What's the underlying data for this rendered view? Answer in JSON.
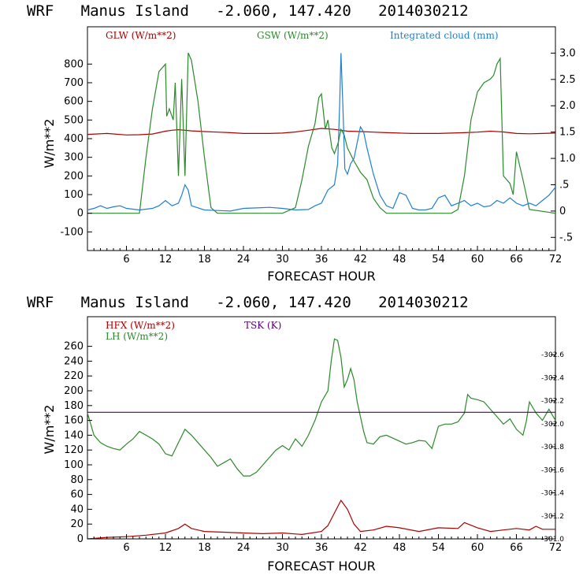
{
  "top_title": "WRF   Manus Island   -2.060, 147.420   2014030212",
  "bottom_title": "WRF   Manus Island   -2.060, 147.420   2014030212",
  "chart_data": [
    {
      "type": "line",
      "xlabel": "FORECAST HOUR",
      "ylabel": "W/m**2",
      "xlim": [
        0,
        72
      ],
      "xticks": [
        6,
        12,
        18,
        24,
        30,
        36,
        42,
        48,
        54,
        60,
        66,
        72
      ],
      "ylim": [
        -200,
        1000
      ],
      "yticks": [
        -100,
        0,
        100,
        200,
        300,
        400,
        500,
        600,
        700,
        800
      ],
      "y2lim": [
        -0.75,
        3.5
      ],
      "y2ticks": [
        -0.5,
        0,
        0.5,
        1.0,
        1.5,
        2.0,
        2.5,
        3.0
      ],
      "y2ticklabels": [
        "-.5",
        "0",
        ".5",
        "1.0",
        "1.5",
        "2.0",
        "2.5",
        "3.0"
      ],
      "series": [
        {
          "name": "GLW (W/m**2)",
          "color": "#aa0000",
          "axis": "left",
          "x": [
            0,
            3,
            6,
            8,
            10,
            12,
            13,
            14,
            15,
            16,
            18,
            20,
            22,
            24,
            26,
            28,
            30,
            32,
            34,
            36,
            38,
            40,
            42,
            44,
            46,
            48,
            50,
            52,
            54,
            56,
            58,
            60,
            62,
            64,
            66,
            68,
            70,
            72
          ],
          "y": [
            423,
            428,
            420,
            421,
            425,
            440,
            445,
            448,
            445,
            442,
            438,
            435,
            432,
            428,
            428,
            428,
            430,
            436,
            445,
            455,
            450,
            440,
            438,
            435,
            432,
            430,
            428,
            428,
            428,
            430,
            432,
            435,
            440,
            436,
            428,
            426,
            428,
            430
          ]
        },
        {
          "name": "GSW (W/m**2)",
          "color": "#2a8a2a",
          "axis": "left",
          "x": [
            0,
            8,
            9,
            10,
            11,
            12,
            12.2,
            12.6,
            13.2,
            13.5,
            14,
            14.5,
            15,
            15.5,
            16,
            17,
            18,
            19,
            20,
            24,
            30,
            32,
            33,
            34,
            35,
            35.6,
            36,
            36.6,
            37,
            37.6,
            38,
            38.6,
            39,
            39.5,
            40,
            41,
            42,
            43,
            44,
            45,
            46,
            50,
            56,
            57,
            58,
            59,
            60,
            61,
            62,
            62.5,
            63,
            63.5,
            64,
            65,
            65.5,
            66,
            67,
            68,
            72
          ],
          "y": [
            0,
            0,
            300,
            560,
            760,
            800,
            520,
            560,
            500,
            700,
            200,
            720,
            200,
            860,
            820,
            600,
            300,
            30,
            0,
            0,
            0,
            30,
            180,
            360,
            480,
            620,
            640,
            450,
            500,
            350,
            320,
            380,
            450,
            420,
            350,
            280,
            220,
            180,
            80,
            30,
            0,
            0,
            0,
            20,
            200,
            500,
            650,
            700,
            720,
            740,
            800,
            830,
            200,
            160,
            100,
            330,
            180,
            20,
            0
          ]
        },
        {
          "name": "Integrated cloud (mm)",
          "color": "#1e7fd0",
          "axis": "right",
          "x": [
            0,
            1,
            2,
            3,
            4,
            5,
            6,
            8,
            10,
            11,
            12,
            13,
            14,
            14.5,
            15,
            15.5,
            16,
            18,
            20,
            22,
            24,
            26,
            28,
            30,
            32,
            34,
            35,
            36,
            37,
            38,
            38.5,
            38.8,
            39,
            39.3,
            39.6,
            40,
            40.5,
            41,
            41.5,
            42,
            42.5,
            43,
            44,
            45,
            46,
            47,
            48,
            49,
            50,
            51,
            52,
            53,
            54,
            55,
            56,
            57,
            58,
            59,
            60,
            61,
            62,
            63,
            64,
            65,
            66,
            67,
            68,
            69,
            70,
            71,
            72
          ],
          "y": [
            0.02,
            0.05,
            0.1,
            0.05,
            0.08,
            0.1,
            0.05,
            0.02,
            0.05,
            0.1,
            0.2,
            0.1,
            0.15,
            0.3,
            0.5,
            0.4,
            0.1,
            0.02,
            0.01,
            0.0,
            0.05,
            0.06,
            0.07,
            0.05,
            0.02,
            0.03,
            0.1,
            0.15,
            0.4,
            0.5,
            0.9,
            2.0,
            3.0,
            2.0,
            0.8,
            0.7,
            0.9,
            1.0,
            1.3,
            1.6,
            1.5,
            1.2,
            0.7,
            0.3,
            0.1,
            0.05,
            0.35,
            0.3,
            0.05,
            0.02,
            0.02,
            0.05,
            0.25,
            0.3,
            0.1,
            0.15,
            0.2,
            0.1,
            0.15,
            0.08,
            0.1,
            0.2,
            0.15,
            0.25,
            0.15,
            0.1,
            0.15,
            0.1,
            0.2,
            0.3,
            0.45
          ]
        }
      ]
    },
    {
      "type": "line",
      "xlabel": "FORECAST HOUR",
      "ylabel": "W/m**2",
      "xlim": [
        0,
        72
      ],
      "xticks": [
        6,
        12,
        18,
        24,
        30,
        36,
        42,
        48,
        54,
        60,
        66,
        72
      ],
      "ylim": [
        0,
        300
      ],
      "yticks": [
        0,
        20,
        40,
        60,
        80,
        100,
        120,
        140,
        160,
        180,
        200,
        220,
        240,
        260
      ],
      "y2lim": [
        301.0,
        302.93
      ],
      "y2ticks": [
        301.0,
        301.2,
        301.4,
        301.6,
        301.8,
        302.0,
        302.2,
        302.4,
        302.6
      ],
      "y2ticklabels": [
        "301.0",
        "301.2",
        "301.4",
        "301.6",
        "301.8",
        "302.0",
        "302.2",
        "302.4",
        "302.6"
      ],
      "series": [
        {
          "name": "HFX (W/m**2)",
          "color": "#aa0000",
          "axis": "left",
          "x": [
            0,
            3,
            6,
            9,
            12,
            14,
            15,
            16,
            18,
            21,
            24,
            27,
            30,
            33,
            36,
            37,
            38,
            39,
            40,
            41,
            42,
            44,
            46,
            48,
            51,
            54,
            57,
            58,
            60,
            62,
            64,
            66,
            68,
            69,
            70,
            72
          ],
          "y": [
            0,
            2,
            3,
            5,
            8,
            14,
            20,
            14,
            10,
            9,
            8,
            7,
            8,
            6,
            10,
            18,
            35,
            52,
            40,
            20,
            10,
            12,
            17,
            15,
            10,
            15,
            14,
            22,
            15,
            10,
            12,
            14,
            12,
            17,
            13,
            13
          ]
        },
        {
          "name": "LH  (W/m**2)",
          "color": "#2a8a2a",
          "axis": "left",
          "x": [
            0,
            1,
            2,
            3,
            4,
            5,
            6,
            7,
            8,
            9,
            10,
            11,
            12,
            13,
            14,
            15,
            16,
            17,
            18,
            19,
            20,
            21,
            22,
            23,
            24,
            25,
            26,
            27,
            28,
            29,
            30,
            31,
            32,
            33,
            34,
            35,
            36,
            37,
            37.5,
            38,
            38.5,
            39,
            39.5,
            40,
            40.5,
            41,
            41.5,
            42,
            42.5,
            43,
            44,
            45,
            46,
            47,
            48,
            49,
            50,
            51,
            52,
            53,
            54,
            55,
            56,
            57,
            58,
            58.5,
            59,
            60,
            61,
            62,
            63,
            64,
            65,
            66,
            67,
            67.5,
            68,
            69,
            70,
            71,
            72
          ],
          "y": [
            170,
            140,
            130,
            125,
            122,
            120,
            128,
            135,
            145,
            140,
            135,
            128,
            115,
            112,
            130,
            148,
            140,
            130,
            120,
            110,
            98,
            103,
            108,
            95,
            85,
            85,
            90,
            100,
            110,
            120,
            126,
            120,
            135,
            125,
            140,
            160,
            185,
            200,
            240,
            270,
            268,
            245,
            205,
            215,
            230,
            215,
            185,
            165,
            145,
            130,
            128,
            138,
            140,
            136,
            132,
            128,
            130,
            133,
            132,
            122,
            152,
            155,
            155,
            158,
            170,
            195,
            190,
            188,
            185,
            175,
            165,
            155,
            162,
            148,
            140,
            158,
            185,
            170,
            160,
            175,
            160
          ]
        },
        {
          "name": "TSK (K)",
          "color": "#55006e",
          "axis": "right",
          "x": [
            0,
            72
          ],
          "y": [
            302.1,
            302.1
          ]
        }
      ]
    }
  ]
}
